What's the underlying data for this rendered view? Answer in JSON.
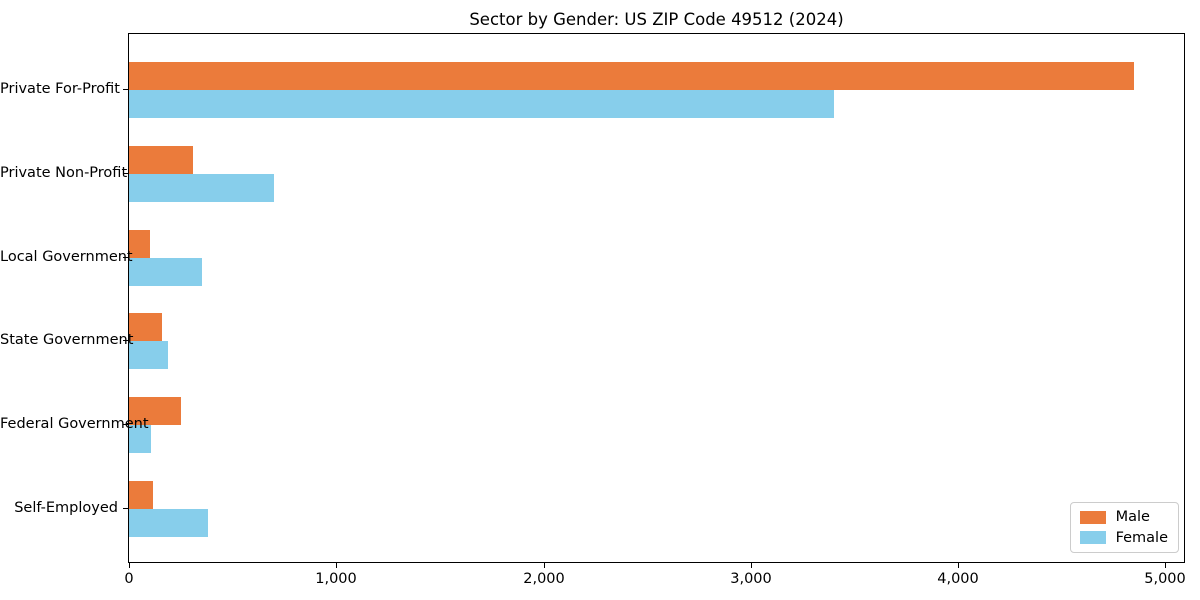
{
  "chart_data": {
    "type": "bar",
    "orientation": "horizontal",
    "title": "Sector by Gender: US ZIP Code 49512 (2024)",
    "categories": [
      "Private For-Profit",
      "Private Non-Profit",
      "Local Government",
      "State Government",
      "Federal Government",
      "Self-Employed"
    ],
    "series": [
      {
        "name": "Male",
        "color": "#EB7B3B",
        "values": [
          4850,
          310,
          100,
          160,
          250,
          115
        ]
      },
      {
        "name": "Female",
        "color": "#87CEEB",
        "values": [
          3400,
          700,
          350,
          190,
          105,
          380
        ]
      }
    ],
    "xlabel": "",
    "ylabel": "",
    "xlim": [
      0,
      5090
    ],
    "x_ticks": [
      {
        "value": 0,
        "label": "0"
      },
      {
        "value": 1000,
        "label": "1,000"
      },
      {
        "value": 2000,
        "label": "2,000"
      },
      {
        "value": 3000,
        "label": "3,000"
      },
      {
        "value": 4000,
        "label": "4,000"
      },
      {
        "value": 5000,
        "label": "5,000"
      }
    ],
    "legend_position": "lower right",
    "grid": false
  }
}
